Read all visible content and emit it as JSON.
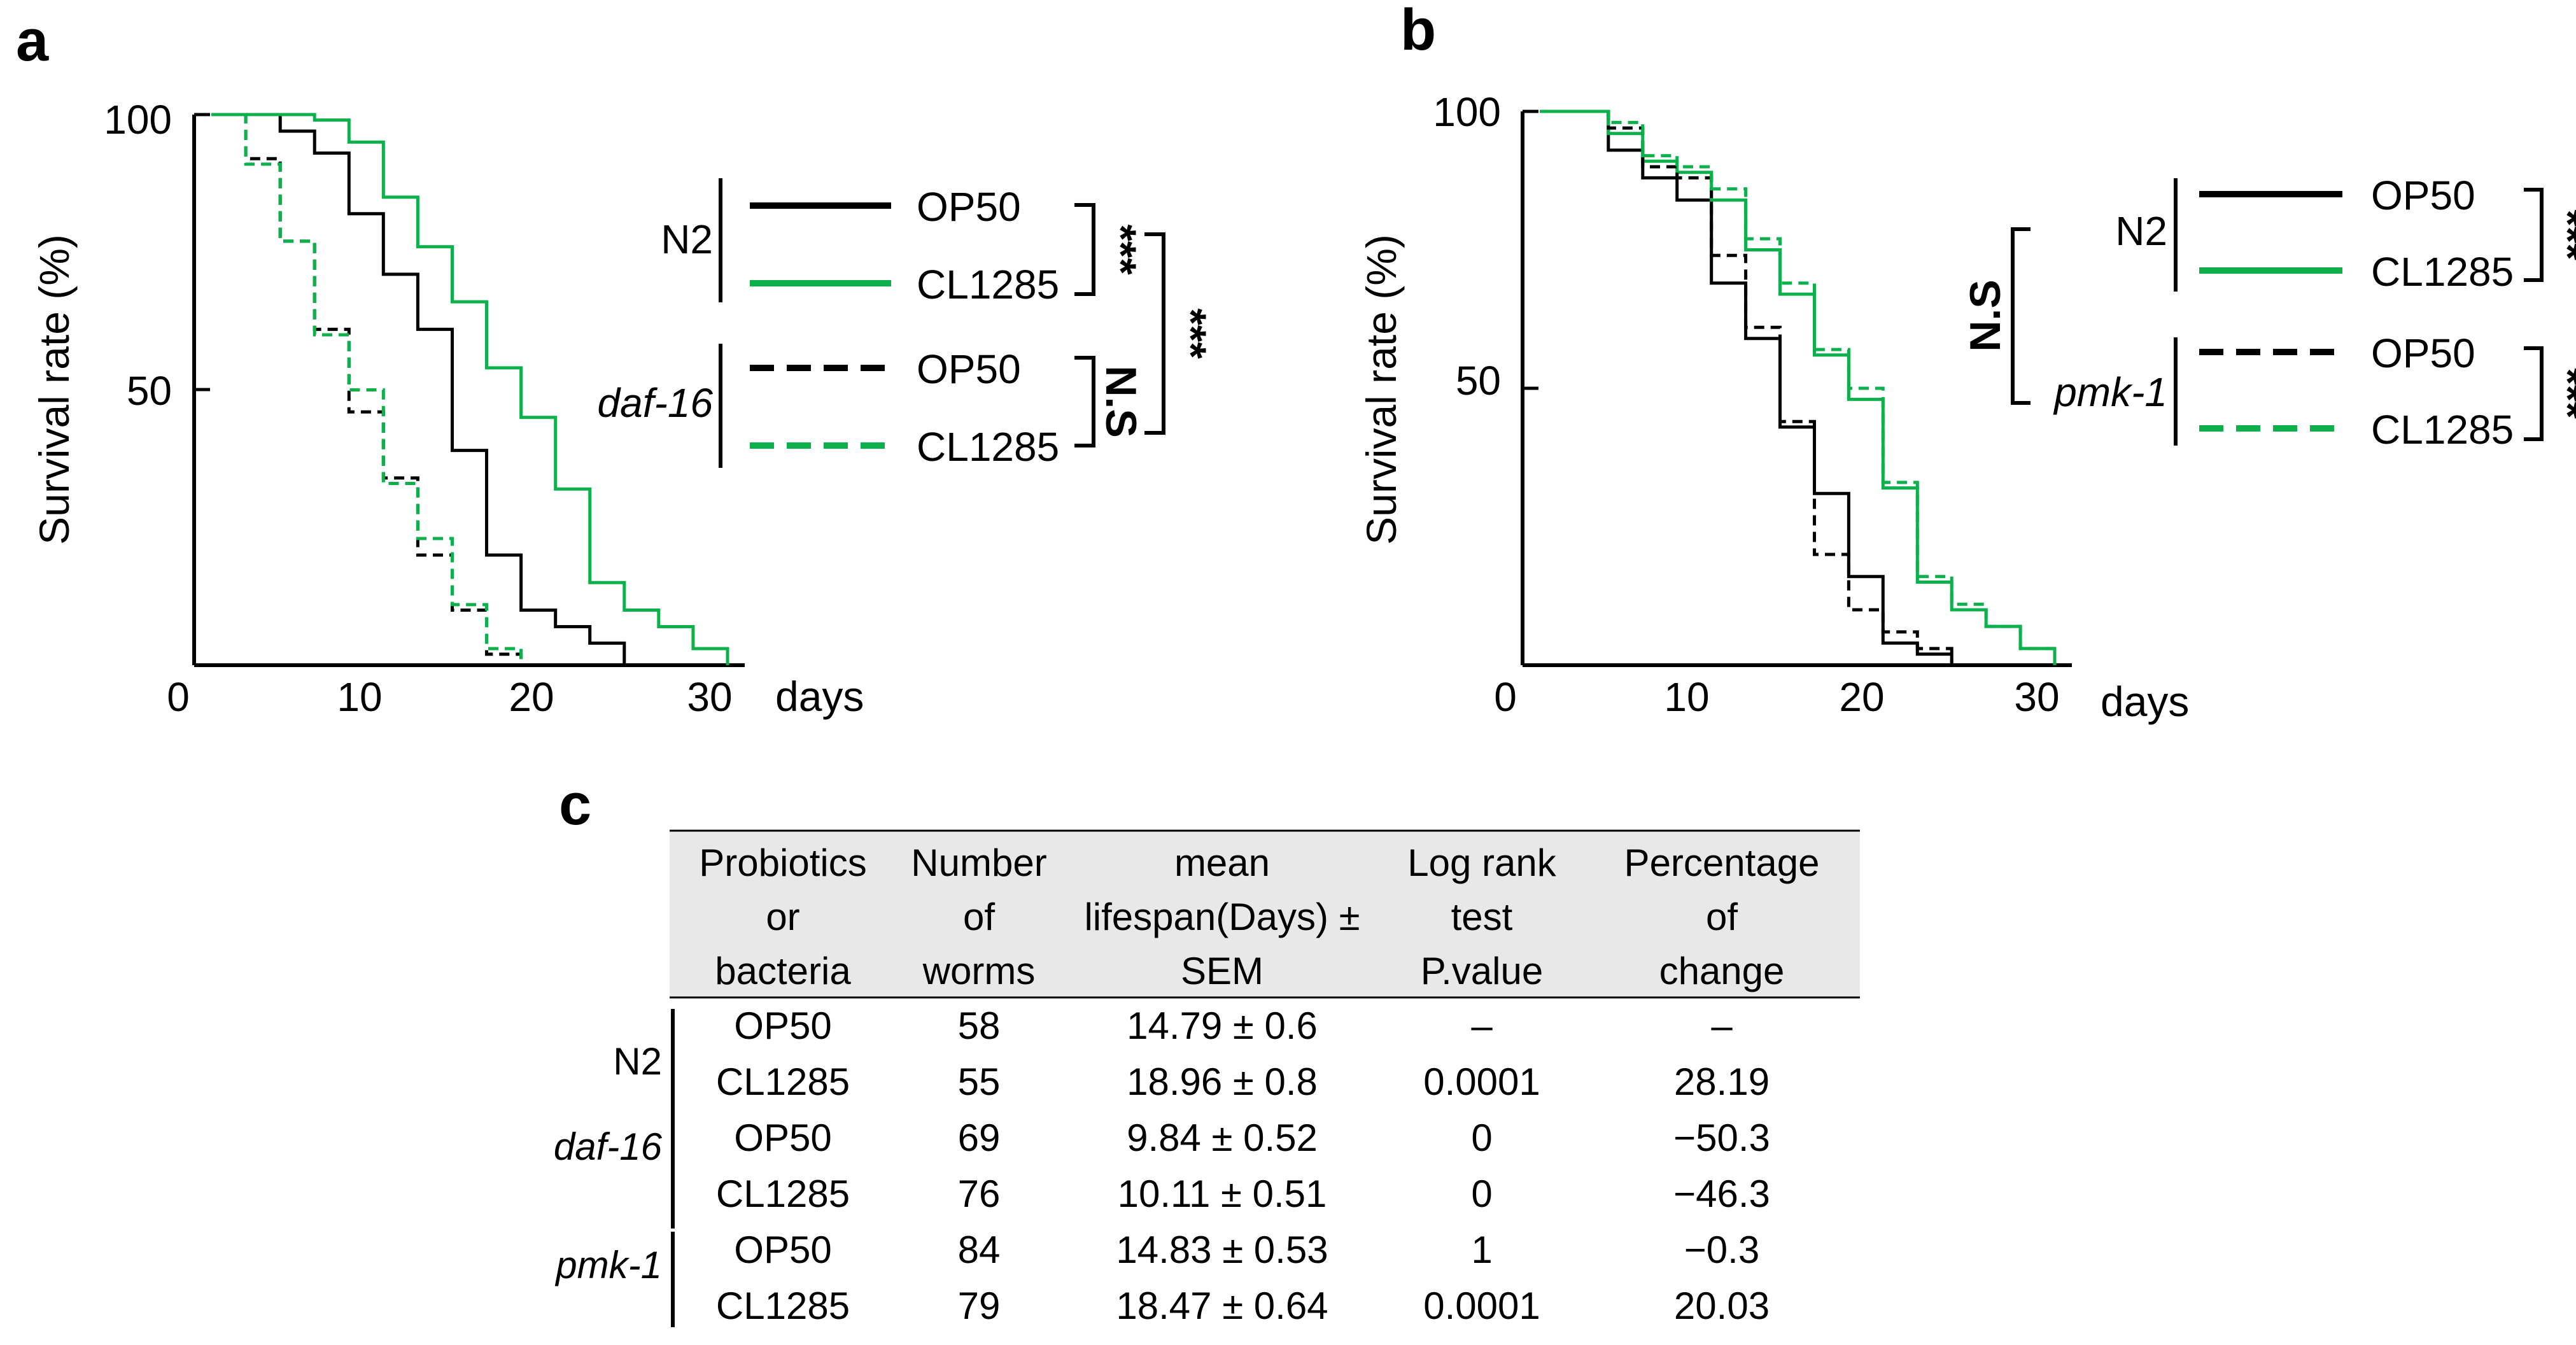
{
  "panels": {
    "a": "a",
    "b": "b",
    "c": "c"
  },
  "chart_data": [
    {
      "type": "line",
      "panel": "a",
      "title": "",
      "xlabel": "days",
      "ylabel": "Survival rate (%)",
      "xlim": [
        0,
        32
      ],
      "ylim": [
        0,
        100
      ],
      "xticks": [
        "0",
        "10",
        "20",
        "30"
      ],
      "yticks": [
        "50",
        "100"
      ],
      "legend": {
        "groups": [
          {
            "label": "N2",
            "italic": false,
            "entries": [
              "OP50",
              "CL1285"
            ]
          },
          {
            "label": "daf-16",
            "italic": true,
            "entries": [
              "OP50",
              "CL1285"
            ]
          }
        ],
        "significance": [
          {
            "label": "***",
            "between": "N2 OP50 vs N2 CL1285"
          },
          {
            "label": "N.S",
            "between": "daf-16 OP50 vs daf-16 CL1285"
          },
          {
            "label": "***",
            "between": "N2 vs daf-16"
          }
        ]
      },
      "series": [
        {
          "name": "N2 OP50",
          "color": "#000000",
          "style": "solid",
          "x": [
            1,
            5,
            7,
            9,
            11,
            13,
            15,
            17,
            19,
            21,
            23,
            25
          ],
          "y": [
            100,
            97,
            93,
            82,
            71,
            61,
            39,
            20,
            10,
            7,
            4,
            0
          ]
        },
        {
          "name": "N2 CL1285",
          "color": "#0db04b",
          "style": "solid",
          "x": [
            1,
            7,
            9,
            11,
            13,
            15,
            17,
            19,
            21,
            23,
            25,
            27,
            29,
            31
          ],
          "y": [
            100,
            99,
            95,
            85,
            76,
            66,
            54,
            45,
            32,
            15,
            10,
            7,
            3,
            0
          ]
        },
        {
          "name": "daf-16 OP50",
          "color": "#000000",
          "style": "dashed",
          "x": [
            1,
            3,
            5,
            7,
            9,
            11,
            13,
            15,
            17,
            19
          ],
          "y": [
            100,
            92,
            77,
            61,
            46,
            34,
            20,
            10,
            2,
            0
          ]
        },
        {
          "name": "daf-16 CL1285",
          "color": "#0db04b",
          "style": "dashed",
          "x": [
            1,
            3,
            5,
            7,
            9,
            11,
            13,
            15,
            17,
            19
          ],
          "y": [
            100,
            91,
            77,
            60,
            50,
            33,
            23,
            11,
            3,
            0
          ]
        }
      ]
    },
    {
      "type": "line",
      "panel": "b",
      "title": "",
      "xlabel": "days",
      "ylabel": "Survival rate (%)",
      "xlim": [
        0,
        32
      ],
      "ylim": [
        0,
        100
      ],
      "xticks": [
        "0",
        "10",
        "20",
        "30"
      ],
      "yticks": [
        "50",
        "100"
      ],
      "legend": {
        "groups": [
          {
            "label": "N2",
            "italic": false,
            "entries": [
              "OP50",
              "CL1285"
            ]
          },
          {
            "label": "pmk-1",
            "italic": true,
            "entries": [
              "OP50",
              "CL1285"
            ]
          }
        ],
        "significance": [
          {
            "label": "***",
            "between": "N2 OP50 vs N2 CL1285"
          },
          {
            "label": "N.S",
            "between": "N2 vs pmk-1"
          },
          {
            "label": "***",
            "between": "pmk-1 OP50 vs pmk-1 CL1285"
          }
        ]
      },
      "series": [
        {
          "name": "N2 OP50",
          "color": "#000000",
          "style": "solid",
          "x": [
            1,
            5,
            7,
            9,
            11,
            13,
            15,
            17,
            19,
            21,
            23,
            25
          ],
          "y": [
            100,
            93,
            88,
            84,
            69,
            59,
            43,
            31,
            16,
            4,
            2,
            0
          ]
        },
        {
          "name": "N2 CL1285",
          "color": "#0db04b",
          "style": "solid",
          "x": [
            1,
            5,
            7,
            9,
            11,
            13,
            15,
            17,
            19,
            21,
            23,
            25,
            27,
            29,
            31
          ],
          "y": [
            100,
            96,
            91,
            89,
            84,
            75,
            67,
            56,
            48,
            32,
            15,
            10,
            7,
            3,
            0
          ]
        },
        {
          "name": "pmk-1 OP50",
          "color": "#000000",
          "style": "dashed",
          "x": [
            1,
            5,
            7,
            9,
            11,
            13,
            15,
            17,
            19,
            21,
            23,
            25
          ],
          "y": [
            100,
            97,
            90,
            88,
            74,
            61,
            44,
            20,
            10,
            6,
            3,
            0
          ]
        },
        {
          "name": "pmk-1 CL1285",
          "color": "#0db04b",
          "style": "dashed",
          "x": [
            1,
            5,
            7,
            9,
            11,
            13,
            15,
            17,
            19,
            21,
            23,
            25,
            27,
            29,
            31
          ],
          "y": [
            100,
            98,
            92,
            90,
            86,
            77,
            69,
            57,
            50,
            33,
            16,
            11,
            7,
            3,
            0
          ]
        }
      ]
    },
    {
      "type": "table",
      "panel": "c",
      "headers": [
        [
          "Probiotics",
          "or",
          "bacteria"
        ],
        [
          "Number",
          "of",
          "worms"
        ],
        [
          "mean",
          "lifespan(Days) ±",
          "SEM"
        ],
        [
          "Log rank",
          "test",
          "P.value"
        ],
        [
          "Percentage",
          "of",
          "change"
        ]
      ],
      "groups": [
        {
          "label": "N2",
          "italic": false
        },
        {
          "label": "daf-16",
          "italic": true
        },
        {
          "label": "pmk-1",
          "italic": true
        }
      ],
      "rows": [
        [
          "OP50",
          "58",
          "14.79 ± 0.6",
          "–",
          "–"
        ],
        [
          "CL1285",
          "55",
          "18.96 ± 0.8",
          "0.0001",
          "28.19"
        ],
        [
          "OP50",
          "69",
          "9.84 ± 0.52",
          "0",
          "−50.3"
        ],
        [
          "CL1285",
          "76",
          "10.11 ± 0.51",
          "0",
          "−46.3"
        ],
        [
          "OP50",
          "84",
          "14.83 ± 0.53",
          "1",
          "−0.3"
        ],
        [
          "CL1285",
          "79",
          "18.47 ± 0.64",
          "0.0001",
          "20.03"
        ]
      ]
    }
  ]
}
